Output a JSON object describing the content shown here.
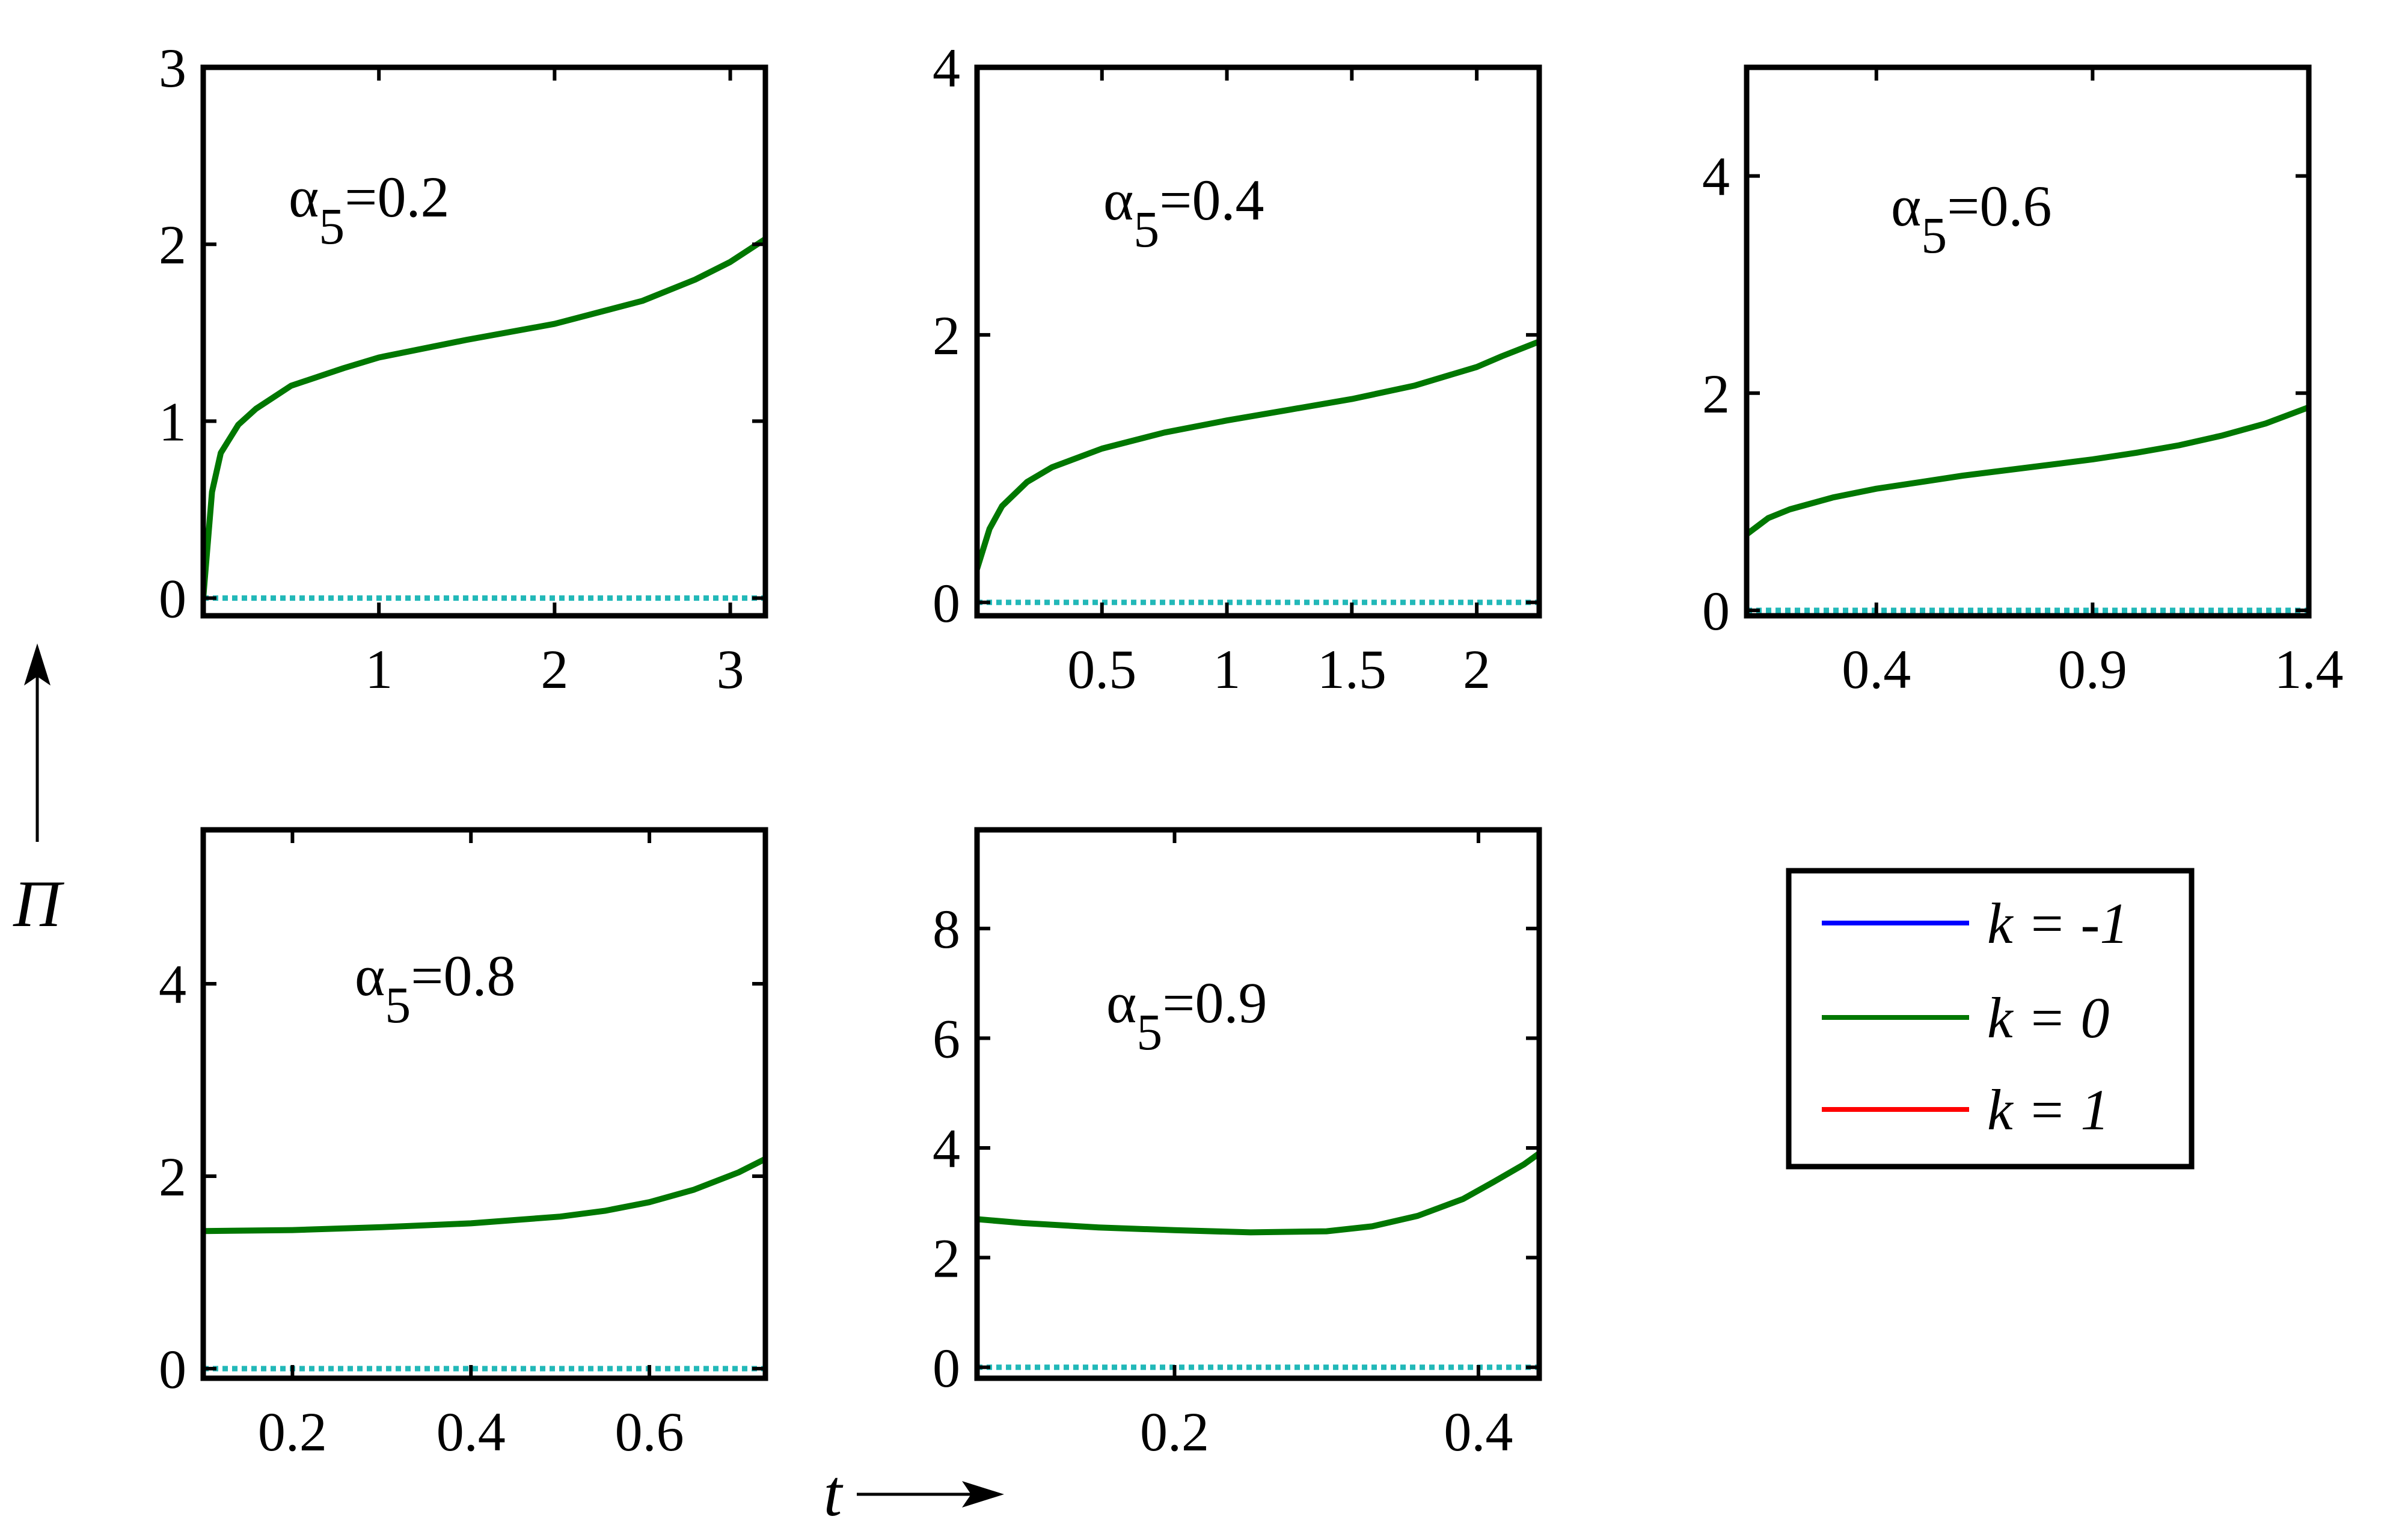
{
  "axes": {
    "ylabel": "Π",
    "xlabel": "t"
  },
  "legend": {
    "placement": "bottom-right",
    "entries": [
      {
        "label": "k = -1",
        "color": "#0000ff"
      },
      {
        "label": "k = 0",
        "color": "#007700"
      },
      {
        "label": "k = 1",
        "color": "#ff0000"
      }
    ]
  },
  "colors": {
    "k0_curve": "#007700",
    "zero_line": "#22b8b8"
  },
  "chart_data": [
    {
      "type": "line",
      "label_prefix": "α",
      "label_sub": "5",
      "label_value": "=0.2",
      "xlim": [
        0.0,
        3.2
      ],
      "ylim": [
        -0.1,
        3.0
      ],
      "xticks": [
        1,
        2,
        3
      ],
      "xtick_labels": [
        "1",
        "2",
        "3"
      ],
      "yticks": [
        0,
        1,
        2,
        3
      ],
      "ytick_labels": [
        "0",
        "1",
        "2",
        "3"
      ],
      "series": [
        {
          "x": [
            0.0,
            0.05,
            0.1,
            0.2,
            0.3,
            0.5,
            0.8,
            1.0,
            1.5,
            2.0,
            2.5,
            2.8,
            3.0,
            3.2
          ],
          "y": [
            0.0,
            0.6,
            0.82,
            0.98,
            1.07,
            1.2,
            1.3,
            1.36,
            1.46,
            1.55,
            1.68,
            1.8,
            1.9,
            2.03
          ]
        },
        {
          "x": [
            0.0,
            3.2
          ],
          "y": [
            0.0,
            0.0
          ]
        }
      ]
    },
    {
      "type": "line",
      "label_prefix": "α",
      "label_sub": "5",
      "label_value": "=0.4",
      "xlim": [
        0.0,
        2.25
      ],
      "ylim": [
        -0.1,
        4.0
      ],
      "xticks": [
        0.5,
        1,
        1.5,
        2
      ],
      "xtick_labels": [
        "0.5",
        "1",
        "1.5",
        "2"
      ],
      "yticks": [
        0,
        2,
        4
      ],
      "ytick_labels": [
        "0",
        "2",
        "4"
      ],
      "series": [
        {
          "x": [
            0.0,
            0.05,
            0.1,
            0.2,
            0.3,
            0.5,
            0.75,
            1.0,
            1.25,
            1.5,
            1.75,
            2.0,
            2.1,
            2.25
          ],
          "y": [
            0.25,
            0.55,
            0.72,
            0.9,
            1.01,
            1.15,
            1.27,
            1.36,
            1.44,
            1.52,
            1.62,
            1.76,
            1.84,
            1.95
          ]
        },
        {
          "x": [
            0.0,
            2.25
          ],
          "y": [
            0.0,
            0.0
          ]
        }
      ]
    },
    {
      "type": "line",
      "label_prefix": "α",
      "label_sub": "5",
      "label_value": "=0.6",
      "xlim": [
        0.1,
        1.4
      ],
      "ylim": [
        -0.05,
        5.0
      ],
      "xticks": [
        0.4,
        0.9,
        1.4
      ],
      "xtick_labels": [
        "0.4",
        "0.9",
        "1.4"
      ],
      "yticks": [
        0,
        2,
        4
      ],
      "ytick_labels": [
        "0",
        "2",
        "4"
      ],
      "series": [
        {
          "x": [
            0.1,
            0.15,
            0.2,
            0.3,
            0.4,
            0.5,
            0.6,
            0.7,
            0.8,
            0.9,
            1.0,
            1.1,
            1.2,
            1.3,
            1.4
          ],
          "y": [
            0.7,
            0.85,
            0.93,
            1.04,
            1.12,
            1.18,
            1.24,
            1.29,
            1.34,
            1.39,
            1.45,
            1.52,
            1.61,
            1.72,
            1.87
          ]
        },
        {
          "x": [
            0.1,
            1.4
          ],
          "y": [
            0.0,
            0.0
          ]
        }
      ]
    },
    {
      "type": "line",
      "label_prefix": "α",
      "label_sub": "5",
      "label_value": "=0.8",
      "xlim": [
        0.1,
        0.73
      ],
      "ylim": [
        -0.1,
        5.6
      ],
      "xticks": [
        0.2,
        0.4,
        0.6
      ],
      "xtick_labels": [
        "0.2",
        "0.4",
        "0.6"
      ],
      "yticks": [
        0,
        2,
        4
      ],
      "ytick_labels": [
        "0",
        "2",
        "4"
      ],
      "series": [
        {
          "x": [
            0.1,
            0.2,
            0.3,
            0.4,
            0.5,
            0.55,
            0.6,
            0.65,
            0.7,
            0.73
          ],
          "y": [
            1.43,
            1.44,
            1.47,
            1.51,
            1.58,
            1.64,
            1.73,
            1.86,
            2.04,
            2.18
          ]
        },
        {
          "x": [
            0.1,
            0.73
          ],
          "y": [
            0.0,
            0.0
          ]
        }
      ]
    },
    {
      "type": "line",
      "label_prefix": "α",
      "label_sub": "5",
      "label_value": "=0.9",
      "xlim": [
        0.07,
        0.44
      ],
      "ylim": [
        -0.2,
        9.8
      ],
      "xticks": [
        0.2,
        0.4
      ],
      "xtick_labels": [
        "0.2",
        "0.4"
      ],
      "yticks": [
        0,
        2,
        4,
        6,
        8
      ],
      "ytick_labels": [
        "0",
        "2",
        "4",
        "6",
        "8"
      ],
      "series": [
        {
          "x": [
            0.07,
            0.1,
            0.15,
            0.2,
            0.25,
            0.3,
            0.33,
            0.36,
            0.39,
            0.41,
            0.43,
            0.44
          ],
          "y": [
            2.7,
            2.63,
            2.55,
            2.5,
            2.46,
            2.48,
            2.57,
            2.76,
            3.07,
            3.38,
            3.7,
            3.9
          ]
        },
        {
          "x": [
            0.07,
            0.44
          ],
          "y": [
            0.0,
            0.0
          ]
        }
      ]
    }
  ]
}
